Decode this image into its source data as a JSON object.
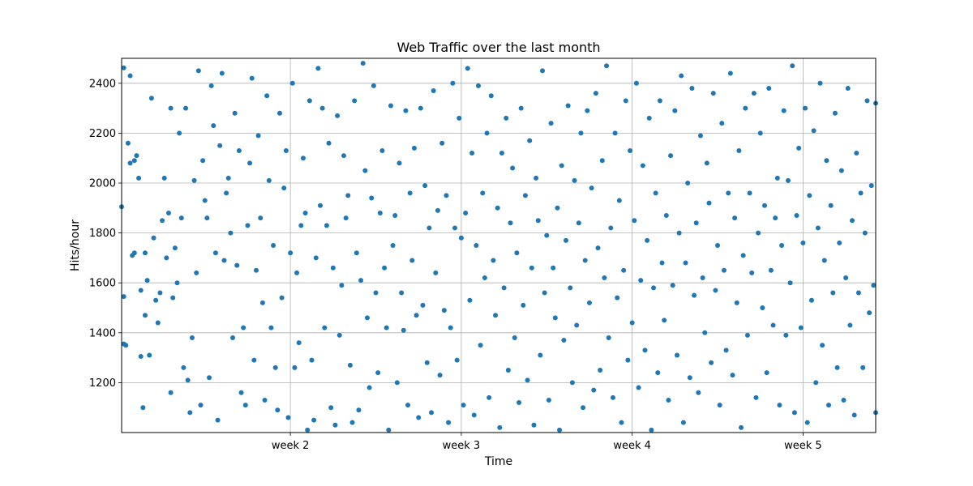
{
  "chart_data": {
    "type": "scatter",
    "title": "Web Traffic over the last month",
    "xlabel": "Time",
    "ylabel": "Hits/hour",
    "grid": true,
    "color": "#1f77b4",
    "xlim": [
      0,
      35.3
    ],
    "ylim": [
      1000,
      2500
    ],
    "x_ticks": [
      {
        "value": 7.9,
        "label": "week 2"
      },
      {
        "value": 15.9,
        "label": "week 3"
      },
      {
        "value": 23.9,
        "label": "week 4"
      },
      {
        "value": 31.9,
        "label": "week 5"
      }
    ],
    "y_ticks": [
      1200,
      1400,
      1600,
      1800,
      2000,
      2200,
      2400
    ],
    "points": [
      [
        0.0,
        1905
      ],
      [
        0.1,
        2462
      ],
      [
        0.1,
        1545
      ],
      [
        0.1,
        1355
      ],
      [
        0.2,
        1350
      ],
      [
        0.3,
        2160
      ],
      [
        0.4,
        2080
      ],
      [
        0.4,
        2430
      ],
      [
        0.5,
        1710
      ],
      [
        0.6,
        2090
      ],
      [
        0.6,
        1720
      ],
      [
        0.7,
        2110
      ],
      [
        0.8,
        2020
      ],
      [
        0.9,
        1570
      ],
      [
        0.9,
        1305
      ],
      [
        1.0,
        1100
      ],
      [
        1.1,
        1470
      ],
      [
        1.1,
        1720
      ],
      [
        1.2,
        1610
      ],
      [
        1.3,
        1310
      ],
      [
        1.4,
        2340
      ],
      [
        1.5,
        1780
      ],
      [
        1.6,
        1530
      ],
      [
        1.7,
        1440
      ],
      [
        1.8,
        1560
      ],
      [
        1.9,
        1850
      ],
      [
        2.0,
        2020
      ],
      [
        2.1,
        1700
      ],
      [
        2.2,
        1880
      ],
      [
        2.3,
        1160
      ],
      [
        2.3,
        2300
      ],
      [
        2.4,
        1540
      ],
      [
        2.5,
        1740
      ],
      [
        2.6,
        1600
      ],
      [
        2.7,
        2200
      ],
      [
        2.8,
        1860
      ],
      [
        2.9,
        1260
      ],
      [
        3.0,
        2300
      ],
      [
        3.1,
        1210
      ],
      [
        3.2,
        1080
      ],
      [
        3.3,
        1380
      ],
      [
        3.4,
        2010
      ],
      [
        3.5,
        1640
      ],
      [
        3.6,
        2450
      ],
      [
        3.7,
        1110
      ],
      [
        3.8,
        2090
      ],
      [
        3.9,
        1930
      ],
      [
        4.0,
        1860
      ],
      [
        4.1,
        1220
      ],
      [
        4.2,
        2390
      ],
      [
        4.3,
        2230
      ],
      [
        4.4,
        1720
      ],
      [
        4.5,
        1050
      ],
      [
        4.6,
        2150
      ],
      [
        4.7,
        2440
      ],
      [
        4.8,
        1690
      ],
      [
        4.9,
        1960
      ],
      [
        5.0,
        2020
      ],
      [
        5.1,
        1800
      ],
      [
        5.2,
        1380
      ],
      [
        5.3,
        2280
      ],
      [
        5.4,
        1670
      ],
      [
        5.5,
        2130
      ],
      [
        5.6,
        1160
      ],
      [
        5.7,
        1420
      ],
      [
        5.8,
        1110
      ],
      [
        5.9,
        1830
      ],
      [
        6.0,
        2080
      ],
      [
        6.1,
        2420
      ],
      [
        6.2,
        1290
      ],
      [
        6.3,
        1650
      ],
      [
        6.4,
        2190
      ],
      [
        6.5,
        1860
      ],
      [
        6.6,
        1520
      ],
      [
        6.7,
        1130
      ],
      [
        6.8,
        2350
      ],
      [
        6.9,
        2010
      ],
      [
        7.0,
        1420
      ],
      [
        7.1,
        1750
      ],
      [
        7.2,
        1260
      ],
      [
        7.3,
        1090
      ],
      [
        7.4,
        2280
      ],
      [
        7.5,
        1540
      ],
      [
        7.6,
        1980
      ],
      [
        7.7,
        2130
      ],
      [
        7.8,
        1060
      ],
      [
        7.9,
        1720
      ],
      [
        8.0,
        2400
      ],
      [
        8.1,
        1260
      ],
      [
        8.2,
        1640
      ],
      [
        8.3,
        1360
      ],
      [
        8.4,
        1830
      ],
      [
        8.5,
        2100
      ],
      [
        8.6,
        1880
      ],
      [
        8.7,
        1010
      ],
      [
        8.8,
        2330
      ],
      [
        8.9,
        1290
      ],
      [
        9.0,
        1050
      ],
      [
        9.1,
        1700
      ],
      [
        9.2,
        2460
      ],
      [
        9.3,
        1910
      ],
      [
        9.4,
        2300
      ],
      [
        9.5,
        1420
      ],
      [
        9.6,
        1830
      ],
      [
        9.7,
        2160
      ],
      [
        9.8,
        1100
      ],
      [
        9.9,
        1660
      ],
      [
        10.0,
        1030
      ],
      [
        10.1,
        2270
      ],
      [
        10.2,
        1390
      ],
      [
        10.3,
        1590
      ],
      [
        10.4,
        2110
      ],
      [
        10.5,
        1860
      ],
      [
        10.6,
        1950
      ],
      [
        10.7,
        1270
      ],
      [
        10.8,
        1040
      ],
      [
        10.9,
        2330
      ],
      [
        11.0,
        1720
      ],
      [
        11.1,
        1090
      ],
      [
        11.2,
        1610
      ],
      [
        11.3,
        2480
      ],
      [
        11.4,
        2050
      ],
      [
        11.5,
        1460
      ],
      [
        11.6,
        1180
      ],
      [
        11.7,
        1940
      ],
      [
        11.8,
        2390
      ],
      [
        11.9,
        1560
      ],
      [
        12.0,
        1240
      ],
      [
        12.1,
        1880
      ],
      [
        12.2,
        2130
      ],
      [
        12.3,
        1660
      ],
      [
        12.4,
        1420
      ],
      [
        12.5,
        1010
      ],
      [
        12.6,
        2310
      ],
      [
        12.7,
        1750
      ],
      [
        12.8,
        1870
      ],
      [
        12.9,
        1200
      ],
      [
        13.0,
        2080
      ],
      [
        13.1,
        1560
      ],
      [
        13.2,
        1410
      ],
      [
        13.3,
        2290
      ],
      [
        13.4,
        1110
      ],
      [
        13.5,
        1960
      ],
      [
        13.6,
        1690
      ],
      [
        13.7,
        2140
      ],
      [
        13.8,
        1470
      ],
      [
        13.9,
        1060
      ],
      [
        14.0,
        2300
      ],
      [
        14.1,
        1510
      ],
      [
        14.2,
        1990
      ],
      [
        14.3,
        1280
      ],
      [
        14.4,
        1820
      ],
      [
        14.5,
        1080
      ],
      [
        14.6,
        2370
      ],
      [
        14.7,
        1640
      ],
      [
        14.8,
        1890
      ],
      [
        14.9,
        1230
      ],
      [
        15.0,
        2160
      ],
      [
        15.1,
        1490
      ],
      [
        15.2,
        1950
      ],
      [
        15.3,
        1040
      ],
      [
        15.4,
        1420
      ],
      [
        15.5,
        2400
      ],
      [
        15.6,
        1820
      ],
      [
        15.7,
        1290
      ],
      [
        15.8,
        2260
      ],
      [
        15.9,
        1780
      ],
      [
        16.0,
        1110
      ],
      [
        16.1,
        1880
      ],
      [
        16.2,
        2460
      ],
      [
        16.3,
        1530
      ],
      [
        16.4,
        2120
      ],
      [
        16.5,
        1070
      ],
      [
        16.6,
        1750
      ],
      [
        16.7,
        2390
      ],
      [
        16.8,
        1350
      ],
      [
        16.9,
        1960
      ],
      [
        17.0,
        1620
      ],
      [
        17.1,
        2200
      ],
      [
        17.2,
        1140
      ],
      [
        17.3,
        2350
      ],
      [
        17.4,
        1690
      ],
      [
        17.5,
        1470
      ],
      [
        17.6,
        1900
      ],
      [
        17.7,
        1020
      ],
      [
        17.8,
        2120
      ],
      [
        17.9,
        1580
      ],
      [
        18.0,
        2260
      ],
      [
        18.1,
        1250
      ],
      [
        18.2,
        1840
      ],
      [
        18.3,
        2060
      ],
      [
        18.4,
        1380
      ],
      [
        18.5,
        1720
      ],
      [
        18.6,
        1120
      ],
      [
        18.7,
        2300
      ],
      [
        18.8,
        1510
      ],
      [
        18.9,
        1950
      ],
      [
        19.0,
        1210
      ],
      [
        19.1,
        2170
      ],
      [
        19.2,
        1660
      ],
      [
        19.3,
        1030
      ],
      [
        19.4,
        2020
      ],
      [
        19.5,
        1850
      ],
      [
        19.6,
        1310
      ],
      [
        19.7,
        2450
      ],
      [
        19.8,
        1560
      ],
      [
        19.9,
        1790
      ],
      [
        20.0,
        1130
      ],
      [
        20.1,
        2240
      ],
      [
        20.2,
        1660
      ],
      [
        20.3,
        1460
      ],
      [
        20.4,
        1900
      ],
      [
        20.5,
        1010
      ],
      [
        20.6,
        2070
      ],
      [
        20.7,
        1370
      ],
      [
        20.8,
        1770
      ],
      [
        20.9,
        2310
      ],
      [
        21.0,
        1580
      ],
      [
        21.1,
        1200
      ],
      [
        21.2,
        2010
      ],
      [
        21.3,
        1430
      ],
      [
        21.4,
        1840
      ],
      [
        21.5,
        2200
      ],
      [
        21.6,
        1100
      ],
      [
        21.7,
        1690
      ],
      [
        21.8,
        2290
      ],
      [
        21.9,
        1520
      ],
      [
        22.0,
        1980
      ],
      [
        22.1,
        1170
      ],
      [
        22.2,
        2360
      ],
      [
        22.3,
        1740
      ],
      [
        22.4,
        1250
      ],
      [
        22.5,
        2090
      ],
      [
        22.6,
        1620
      ],
      [
        22.7,
        2470
      ],
      [
        22.8,
        1380
      ],
      [
        22.9,
        1820
      ],
      [
        23.0,
        1140
      ],
      [
        23.1,
        2200
      ],
      [
        23.2,
        1540
      ],
      [
        23.3,
        1930
      ],
      [
        23.4,
        1040
      ],
      [
        23.5,
        1650
      ],
      [
        23.6,
        2330
      ],
      [
        23.7,
        1290
      ],
      [
        23.8,
        2130
      ],
      [
        23.9,
        1440
      ],
      [
        24.0,
        1850
      ],
      [
        24.1,
        2400
      ],
      [
        24.2,
        1180
      ],
      [
        24.3,
        1610
      ],
      [
        24.4,
        2070
      ],
      [
        24.5,
        1330
      ],
      [
        24.6,
        1770
      ],
      [
        24.7,
        2260
      ],
      [
        24.8,
        1010
      ],
      [
        24.9,
        1580
      ],
      [
        25.0,
        1960
      ],
      [
        25.1,
        1240
      ],
      [
        25.2,
        2330
      ],
      [
        25.3,
        1680
      ],
      [
        25.4,
        1450
      ],
      [
        25.5,
        1870
      ],
      [
        25.6,
        1130
      ],
      [
        25.7,
        2110
      ],
      [
        25.8,
        1590
      ],
      [
        25.9,
        2290
      ],
      [
        26.0,
        1310
      ],
      [
        26.1,
        1800
      ],
      [
        26.2,
        2430
      ],
      [
        26.3,
        1040
      ],
      [
        26.4,
        1680
      ],
      [
        26.5,
        2000
      ],
      [
        26.6,
        1220
      ],
      [
        26.7,
        2380
      ],
      [
        26.8,
        1550
      ],
      [
        26.9,
        1840
      ],
      [
        27.0,
        1160
      ],
      [
        27.1,
        2190
      ],
      [
        27.2,
        1620
      ],
      [
        27.3,
        1400
      ],
      [
        27.4,
        2080
      ],
      [
        27.5,
        1920
      ],
      [
        27.6,
        1280
      ],
      [
        27.7,
        2360
      ],
      [
        27.8,
        1570
      ],
      [
        27.9,
        1750
      ],
      [
        28.0,
        1110
      ],
      [
        28.1,
        2240
      ],
      [
        28.2,
        1650
      ],
      [
        28.3,
        1330
      ],
      [
        28.4,
        1960
      ],
      [
        28.5,
        2440
      ],
      [
        28.6,
        1230
      ],
      [
        28.7,
        1860
      ],
      [
        28.8,
        1520
      ],
      [
        28.9,
        2130
      ],
      [
        29.0,
        1020
      ],
      [
        29.1,
        1710
      ],
      [
        29.2,
        2300
      ],
      [
        29.3,
        1390
      ],
      [
        29.4,
        1960
      ],
      [
        29.5,
        1640
      ],
      [
        29.6,
        2360
      ],
      [
        29.7,
        1140
      ],
      [
        29.8,
        1800
      ],
      [
        29.9,
        2200
      ],
      [
        30.0,
        1500
      ],
      [
        30.1,
        1910
      ],
      [
        30.2,
        1240
      ],
      [
        30.3,
        2380
      ],
      [
        30.4,
        1650
      ],
      [
        30.5,
        1430
      ],
      [
        30.6,
        1860
      ],
      [
        30.7,
        2020
      ],
      [
        30.8,
        1110
      ],
      [
        30.9,
        1750
      ],
      [
        31.0,
        2290
      ],
      [
        31.1,
        1390
      ],
      [
        31.2,
        2010
      ],
      [
        31.3,
        1600
      ],
      [
        31.4,
        2470
      ],
      [
        31.5,
        1080
      ],
      [
        31.6,
        1870
      ],
      [
        31.7,
        2140
      ],
      [
        31.8,
        1420
      ],
      [
        31.9,
        1760
      ],
      [
        32.0,
        2300
      ],
      [
        32.1,
        1040
      ],
      [
        32.2,
        1950
      ],
      [
        32.3,
        1530
      ],
      [
        32.4,
        2210
      ],
      [
        32.5,
        1200
      ],
      [
        32.6,
        1820
      ],
      [
        32.7,
        2400
      ],
      [
        32.8,
        1350
      ],
      [
        32.9,
        1690
      ],
      [
        33.0,
        2090
      ],
      [
        33.1,
        1110
      ],
      [
        33.2,
        1910
      ],
      [
        33.3,
        1560
      ],
      [
        33.4,
        2280
      ],
      [
        33.5,
        1260
      ],
      [
        33.6,
        1760
      ],
      [
        33.7,
        2050
      ],
      [
        33.8,
        1130
      ],
      [
        33.9,
        1620
      ],
      [
        34.0,
        2380
      ],
      [
        34.1,
        1430
      ],
      [
        34.2,
        1850
      ],
      [
        34.3,
        1070
      ],
      [
        34.4,
        2120
      ],
      [
        34.5,
        1560
      ],
      [
        34.6,
        1960
      ],
      [
        34.7,
        1260
      ],
      [
        34.8,
        1800
      ],
      [
        34.9,
        2330
      ],
      [
        35.0,
        1480
      ],
      [
        35.1,
        1990
      ],
      [
        35.2,
        1590
      ],
      [
        35.3,
        2320
      ],
      [
        35.3,
        1080
      ]
    ]
  }
}
